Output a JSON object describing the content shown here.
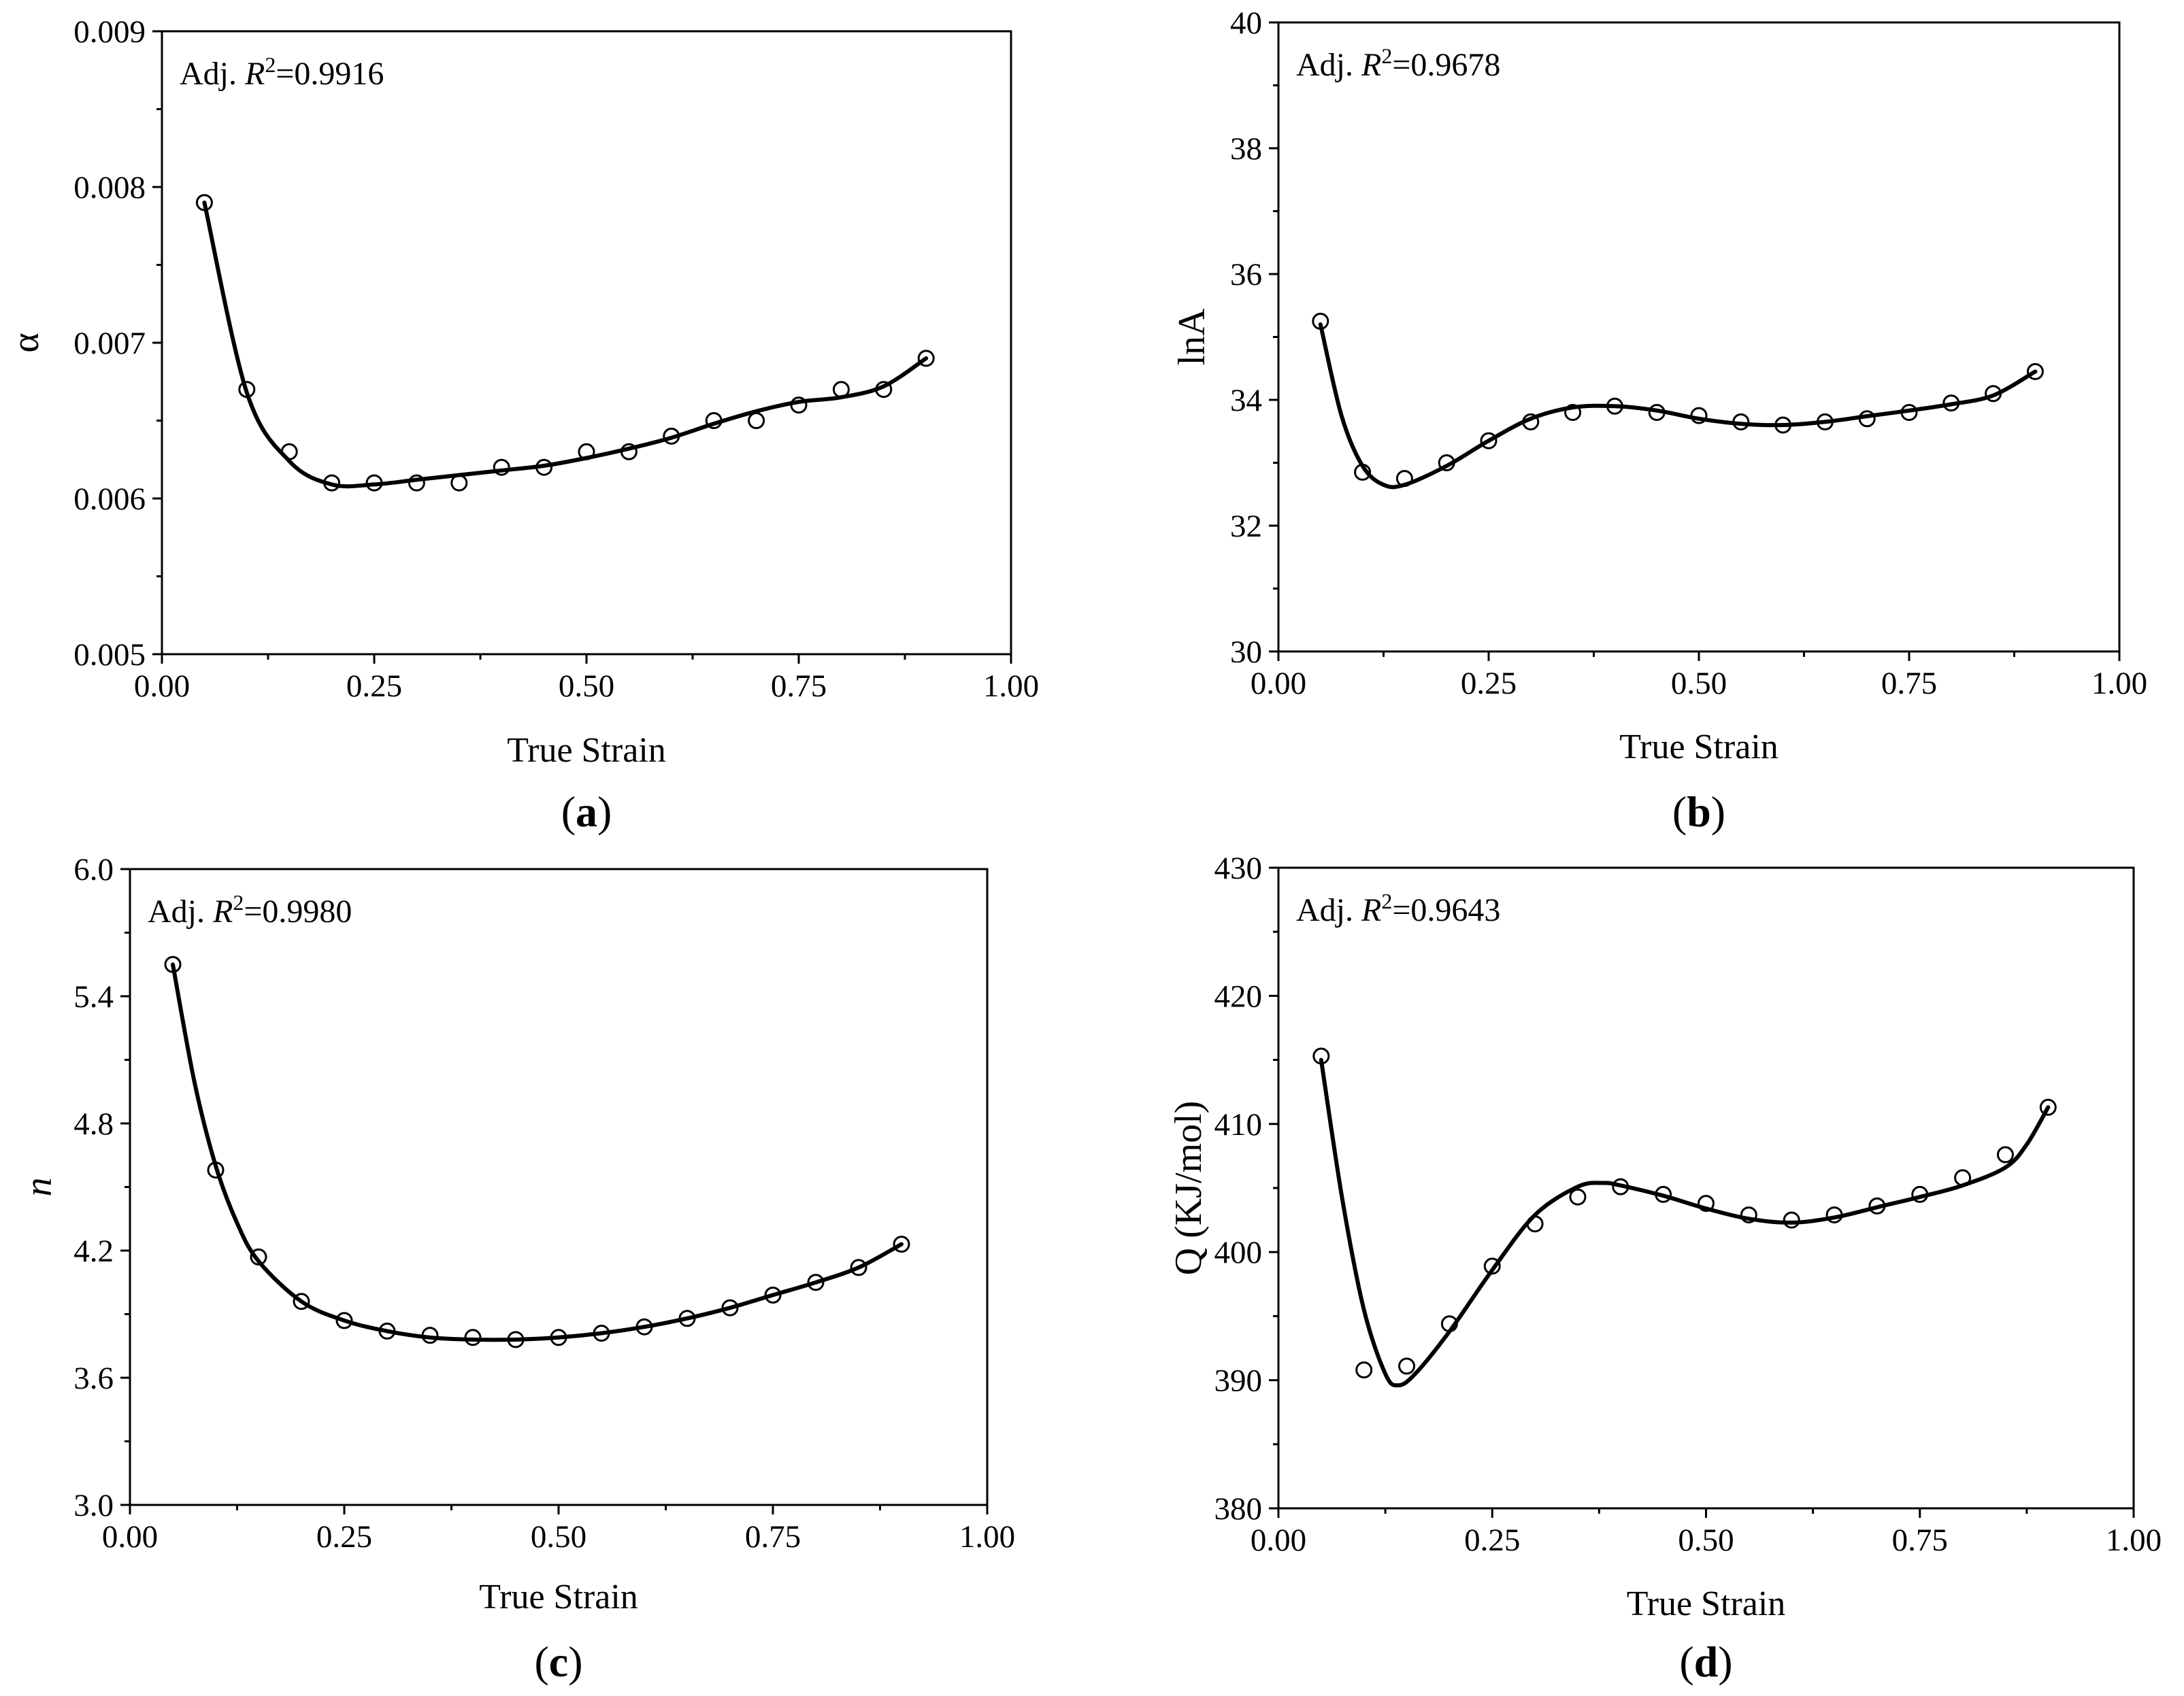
{
  "chart_data": [
    {
      "id": "a",
      "type": "scatter",
      "title": "",
      "panel_label": "a",
      "xlabel": "True Strain",
      "ylabel": "α",
      "ylabel_style": "plain",
      "annotation": {
        "prefix": "Adj. ",
        "r": "R",
        "sup": "2",
        "value": "=0.9916"
      },
      "xlim": [
        0,
        1
      ],
      "ylim": [
        0.005,
        0.009
      ],
      "xticks": [
        0,
        0.25,
        0.5,
        0.75,
        1
      ],
      "xtick_labels": [
        "0.00",
        "0.25",
        "0.50",
        "0.75",
        "1.00"
      ],
      "yticks": [
        0.005,
        0.006,
        0.007,
        0.008,
        0.009
      ],
      "ytick_labels": [
        "0.005",
        "0.006",
        "0.007",
        "0.008",
        "0.009"
      ],
      "series": [
        {
          "name": "data",
          "kind": "markers",
          "x": [
            0.05,
            0.1,
            0.15,
            0.2,
            0.25,
            0.3,
            0.35,
            0.4,
            0.45,
            0.5,
            0.55,
            0.6,
            0.65,
            0.7,
            0.75,
            0.8,
            0.85,
            0.9
          ],
          "y": [
            0.0079,
            0.0067,
            0.0063,
            0.0061,
            0.0061,
            0.0061,
            0.0061,
            0.0062,
            0.0062,
            0.0063,
            0.0063,
            0.0064,
            0.0065,
            0.0065,
            0.0066,
            0.0067,
            0.0067,
            0.0069
          ]
        },
        {
          "name": "fit",
          "kind": "curve",
          "x": [
            0.05,
            0.1,
            0.15,
            0.2,
            0.25,
            0.3,
            0.35,
            0.4,
            0.45,
            0.5,
            0.55,
            0.6,
            0.65,
            0.7,
            0.75,
            0.8,
            0.85,
            0.9
          ],
          "y": [
            0.0079,
            0.00668,
            0.00624,
            0.00609,
            0.00609,
            0.00612,
            0.00615,
            0.00618,
            0.00621,
            0.00626,
            0.00632,
            0.00639,
            0.00648,
            0.00656,
            0.00662,
            0.00665,
            0.00672,
            0.0069
          ]
        }
      ]
    },
    {
      "id": "b",
      "type": "scatter",
      "title": "",
      "panel_label": "b",
      "xlabel": "True Strain",
      "ylabel": "lnA",
      "ylabel_style": "plain",
      "annotation": {
        "prefix": "Adj. ",
        "r": "R",
        "sup": "2",
        "value": "=0.9678"
      },
      "xlim": [
        0,
        1
      ],
      "ylim": [
        30,
        40
      ],
      "xticks": [
        0,
        0.25,
        0.5,
        0.75,
        1
      ],
      "xtick_labels": [
        "0.00",
        "0.25",
        "0.50",
        "0.75",
        "1.00"
      ],
      "yticks": [
        30,
        32,
        34,
        36,
        38,
        40
      ],
      "ytick_labels": [
        "30",
        "32",
        "34",
        "36",
        "38",
        "40"
      ],
      "series": [
        {
          "name": "data",
          "kind": "markers",
          "x": [
            0.05,
            0.1,
            0.15,
            0.2,
            0.25,
            0.3,
            0.35,
            0.4,
            0.45,
            0.5,
            0.55,
            0.6,
            0.65,
            0.7,
            0.75,
            0.8,
            0.85,
            0.9
          ],
          "y": [
            35.25,
            32.85,
            32.75,
            33.0,
            33.35,
            33.65,
            33.8,
            33.9,
            33.8,
            33.75,
            33.65,
            33.6,
            33.65,
            33.7,
            33.8,
            33.95,
            34.1,
            34.45
          ]
        },
        {
          "name": "fit",
          "kind": "curve",
          "x": [
            0.05,
            0.075,
            0.1,
            0.125,
            0.15,
            0.2,
            0.25,
            0.3,
            0.35,
            0.4,
            0.45,
            0.5,
            0.55,
            0.6,
            0.65,
            0.7,
            0.75,
            0.8,
            0.85,
            0.9
          ],
          "y": [
            35.2,
            33.75,
            32.95,
            32.65,
            32.65,
            32.95,
            33.35,
            33.7,
            33.88,
            33.9,
            33.83,
            33.7,
            33.62,
            33.6,
            33.65,
            33.74,
            33.83,
            33.93,
            34.07,
            34.45
          ]
        }
      ]
    },
    {
      "id": "c",
      "type": "scatter",
      "title": "",
      "panel_label": "c",
      "xlabel": "True Strain",
      "ylabel": "n",
      "ylabel_style": "italic",
      "annotation": {
        "prefix": "Adj. ",
        "r": "R",
        "sup": "2",
        "value": "=0.9980"
      },
      "xlim": [
        0,
        1
      ],
      "ylim": [
        3.0,
        6.0
      ],
      "xticks": [
        0,
        0.25,
        0.5,
        0.75,
        1
      ],
      "xtick_labels": [
        "0.00",
        "0.25",
        "0.50",
        "0.75",
        "1.00"
      ],
      "yticks": [
        3.0,
        3.6,
        4.2,
        4.8,
        5.4,
        6.0
      ],
      "ytick_labels": [
        "3.0",
        "3.6",
        "4.2",
        "4.8",
        "5.4",
        "6.0"
      ],
      "series": [
        {
          "name": "data",
          "kind": "markers",
          "x": [
            0.05,
            0.1,
            0.15,
            0.2,
            0.25,
            0.3,
            0.35,
            0.4,
            0.45,
            0.5,
            0.55,
            0.6,
            0.65,
            0.7,
            0.75,
            0.8,
            0.85,
            0.9
          ],
          "y": [
            5.55,
            4.58,
            4.17,
            3.96,
            3.87,
            3.82,
            3.8,
            3.79,
            3.78,
            3.79,
            3.81,
            3.84,
            3.88,
            3.93,
            3.99,
            4.05,
            4.12,
            4.23
          ]
        },
        {
          "name": "fit",
          "kind": "curve",
          "x": [
            0.05,
            0.075,
            0.1,
            0.125,
            0.15,
            0.2,
            0.25,
            0.3,
            0.35,
            0.4,
            0.45,
            0.5,
            0.55,
            0.6,
            0.65,
            0.7,
            0.75,
            0.8,
            0.85,
            0.9
          ],
          "y": [
            5.55,
            5.0,
            4.6,
            4.33,
            4.15,
            3.96,
            3.87,
            3.82,
            3.79,
            3.78,
            3.78,
            3.79,
            3.81,
            3.84,
            3.88,
            3.93,
            3.99,
            4.05,
            4.12,
            4.23
          ]
        }
      ]
    },
    {
      "id": "d",
      "type": "scatter",
      "title": "",
      "panel_label": "d",
      "xlabel": "True Strain",
      "ylabel": "Q (KJ/mol)",
      "ylabel_style": "plain",
      "annotation": {
        "prefix": "Adj. ",
        "r": "R",
        "sup": "2",
        "value": "=0.9643"
      },
      "xlim": [
        0,
        1
      ],
      "ylim": [
        380,
        430
      ],
      "xticks": [
        0,
        0.25,
        0.5,
        0.75,
        1
      ],
      "xtick_labels": [
        "0.00",
        "0.25",
        "0.50",
        "0.75",
        "1.00"
      ],
      "yticks": [
        380,
        390,
        400,
        410,
        420,
        430
      ],
      "ytick_labels": [
        "380",
        "390",
        "400",
        "410",
        "420",
        "430"
      ],
      "series": [
        {
          "name": "data",
          "kind": "markers",
          "x": [
            0.05,
            0.1,
            0.15,
            0.2,
            0.25,
            0.3,
            0.35,
            0.4,
            0.45,
            0.5,
            0.55,
            0.6,
            0.65,
            0.7,
            0.75,
            0.8,
            0.85,
            0.9
          ],
          "y": [
            415.3,
            390.8,
            391.1,
            394.4,
            398.9,
            402.2,
            404.3,
            405.1,
            404.5,
            403.8,
            402.9,
            402.5,
            402.9,
            403.6,
            404.5,
            405.8,
            407.6,
            411.3
          ]
        },
        {
          "name": "fit",
          "kind": "curve",
          "x": [
            0.05,
            0.075,
            0.1,
            0.125,
            0.14,
            0.16,
            0.2,
            0.25,
            0.3,
            0.35,
            0.38,
            0.4,
            0.45,
            0.5,
            0.55,
            0.6,
            0.65,
            0.7,
            0.75,
            0.8,
            0.85,
            0.875,
            0.9
          ],
          "y": [
            415,
            404,
            395.5,
            390.5,
            389.6,
            390.5,
            393.8,
            398.6,
            402.9,
            405.1,
            405.4,
            405.2,
            404.4,
            403.4,
            402.6,
            402.3,
            402.7,
            403.5,
            404.3,
            405.2,
            406.6,
            408.4,
            411.3
          ]
        }
      ]
    }
  ]
}
